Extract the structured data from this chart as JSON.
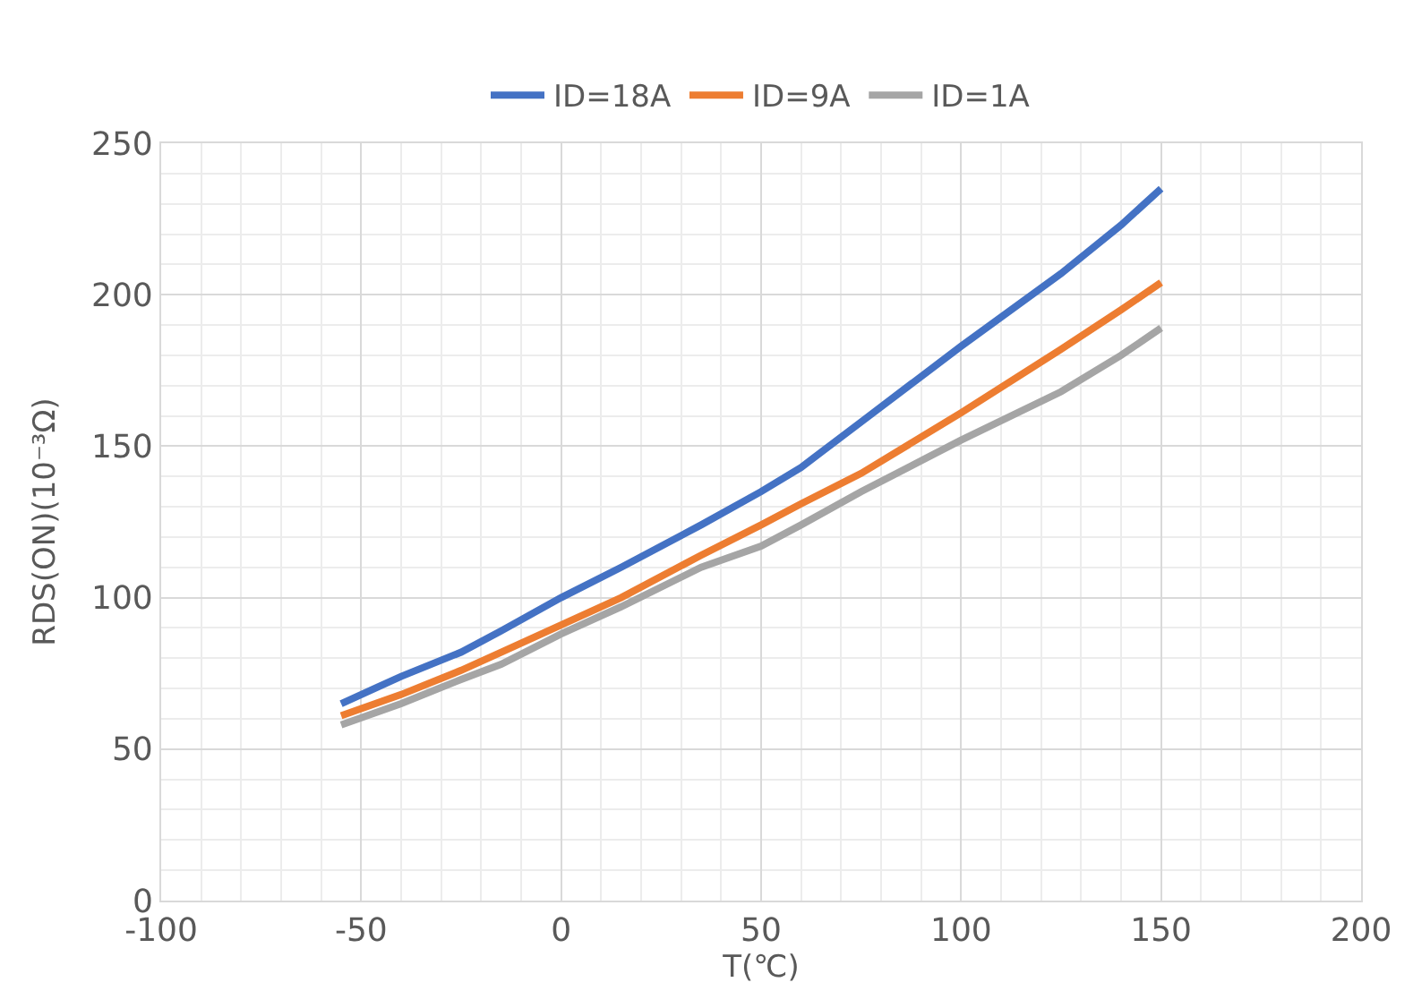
{
  "chart_data": {
    "type": "line",
    "xlabel": "T(℃)",
    "ylabel": "RDS(ON)(10⁻³Ω)",
    "x": [
      -55,
      -40,
      -25,
      -15,
      0,
      15,
      35,
      50,
      60,
      75,
      100,
      125,
      140,
      150
    ],
    "series": [
      {
        "name": "ID=18A",
        "color": "#4472c4",
        "values": [
          65,
          74,
          82,
          89,
          100,
          110,
          124,
          135,
          143,
          158,
          183,
          207,
          223,
          235
        ]
      },
      {
        "name": "ID=9A",
        "color": "#ed7d31",
        "values": [
          61,
          68,
          76,
          82,
          91,
          100,
          114,
          124,
          131,
          141,
          161,
          182,
          195,
          204
        ]
      },
      {
        "name": "ID=1A",
        "color": "#a5a5a5",
        "values": [
          58,
          65,
          73,
          78,
          88,
          97,
          110,
          117,
          124,
          135,
          152,
          168,
          180,
          189
        ]
      }
    ],
    "xlim": [
      -100,
      200
    ],
    "xticks": [
      -100,
      -50,
      0,
      50,
      100,
      150,
      200
    ],
    "ylim": [
      0,
      250
    ],
    "yticks": [
      0,
      50,
      100,
      150,
      200,
      250
    ],
    "grid": true,
    "legend": "top",
    "marker": "none",
    "line_style": "solid"
  }
}
